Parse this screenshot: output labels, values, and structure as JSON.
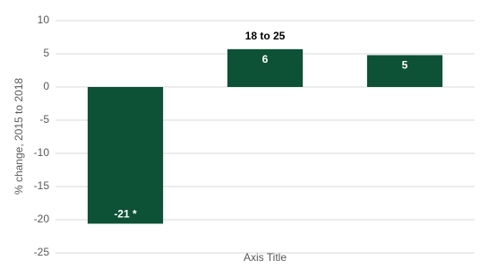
{
  "chart_data": {
    "type": "bar",
    "categories": [
      null,
      "18 to 25",
      null
    ],
    "values": [
      -20.6,
      5.7,
      4.8
    ],
    "value_labels": [
      "-21 *",
      "6",
      "5"
    ],
    "color": "#0d5137",
    "x_label": "Axis Title",
    "y_label": "% change, 2015 to 2018",
    "ylim": [
      -25,
      10
    ],
    "yticks": [
      -25,
      -20,
      -15,
      -10,
      -5,
      0,
      5,
      10
    ],
    "grid": true
  }
}
